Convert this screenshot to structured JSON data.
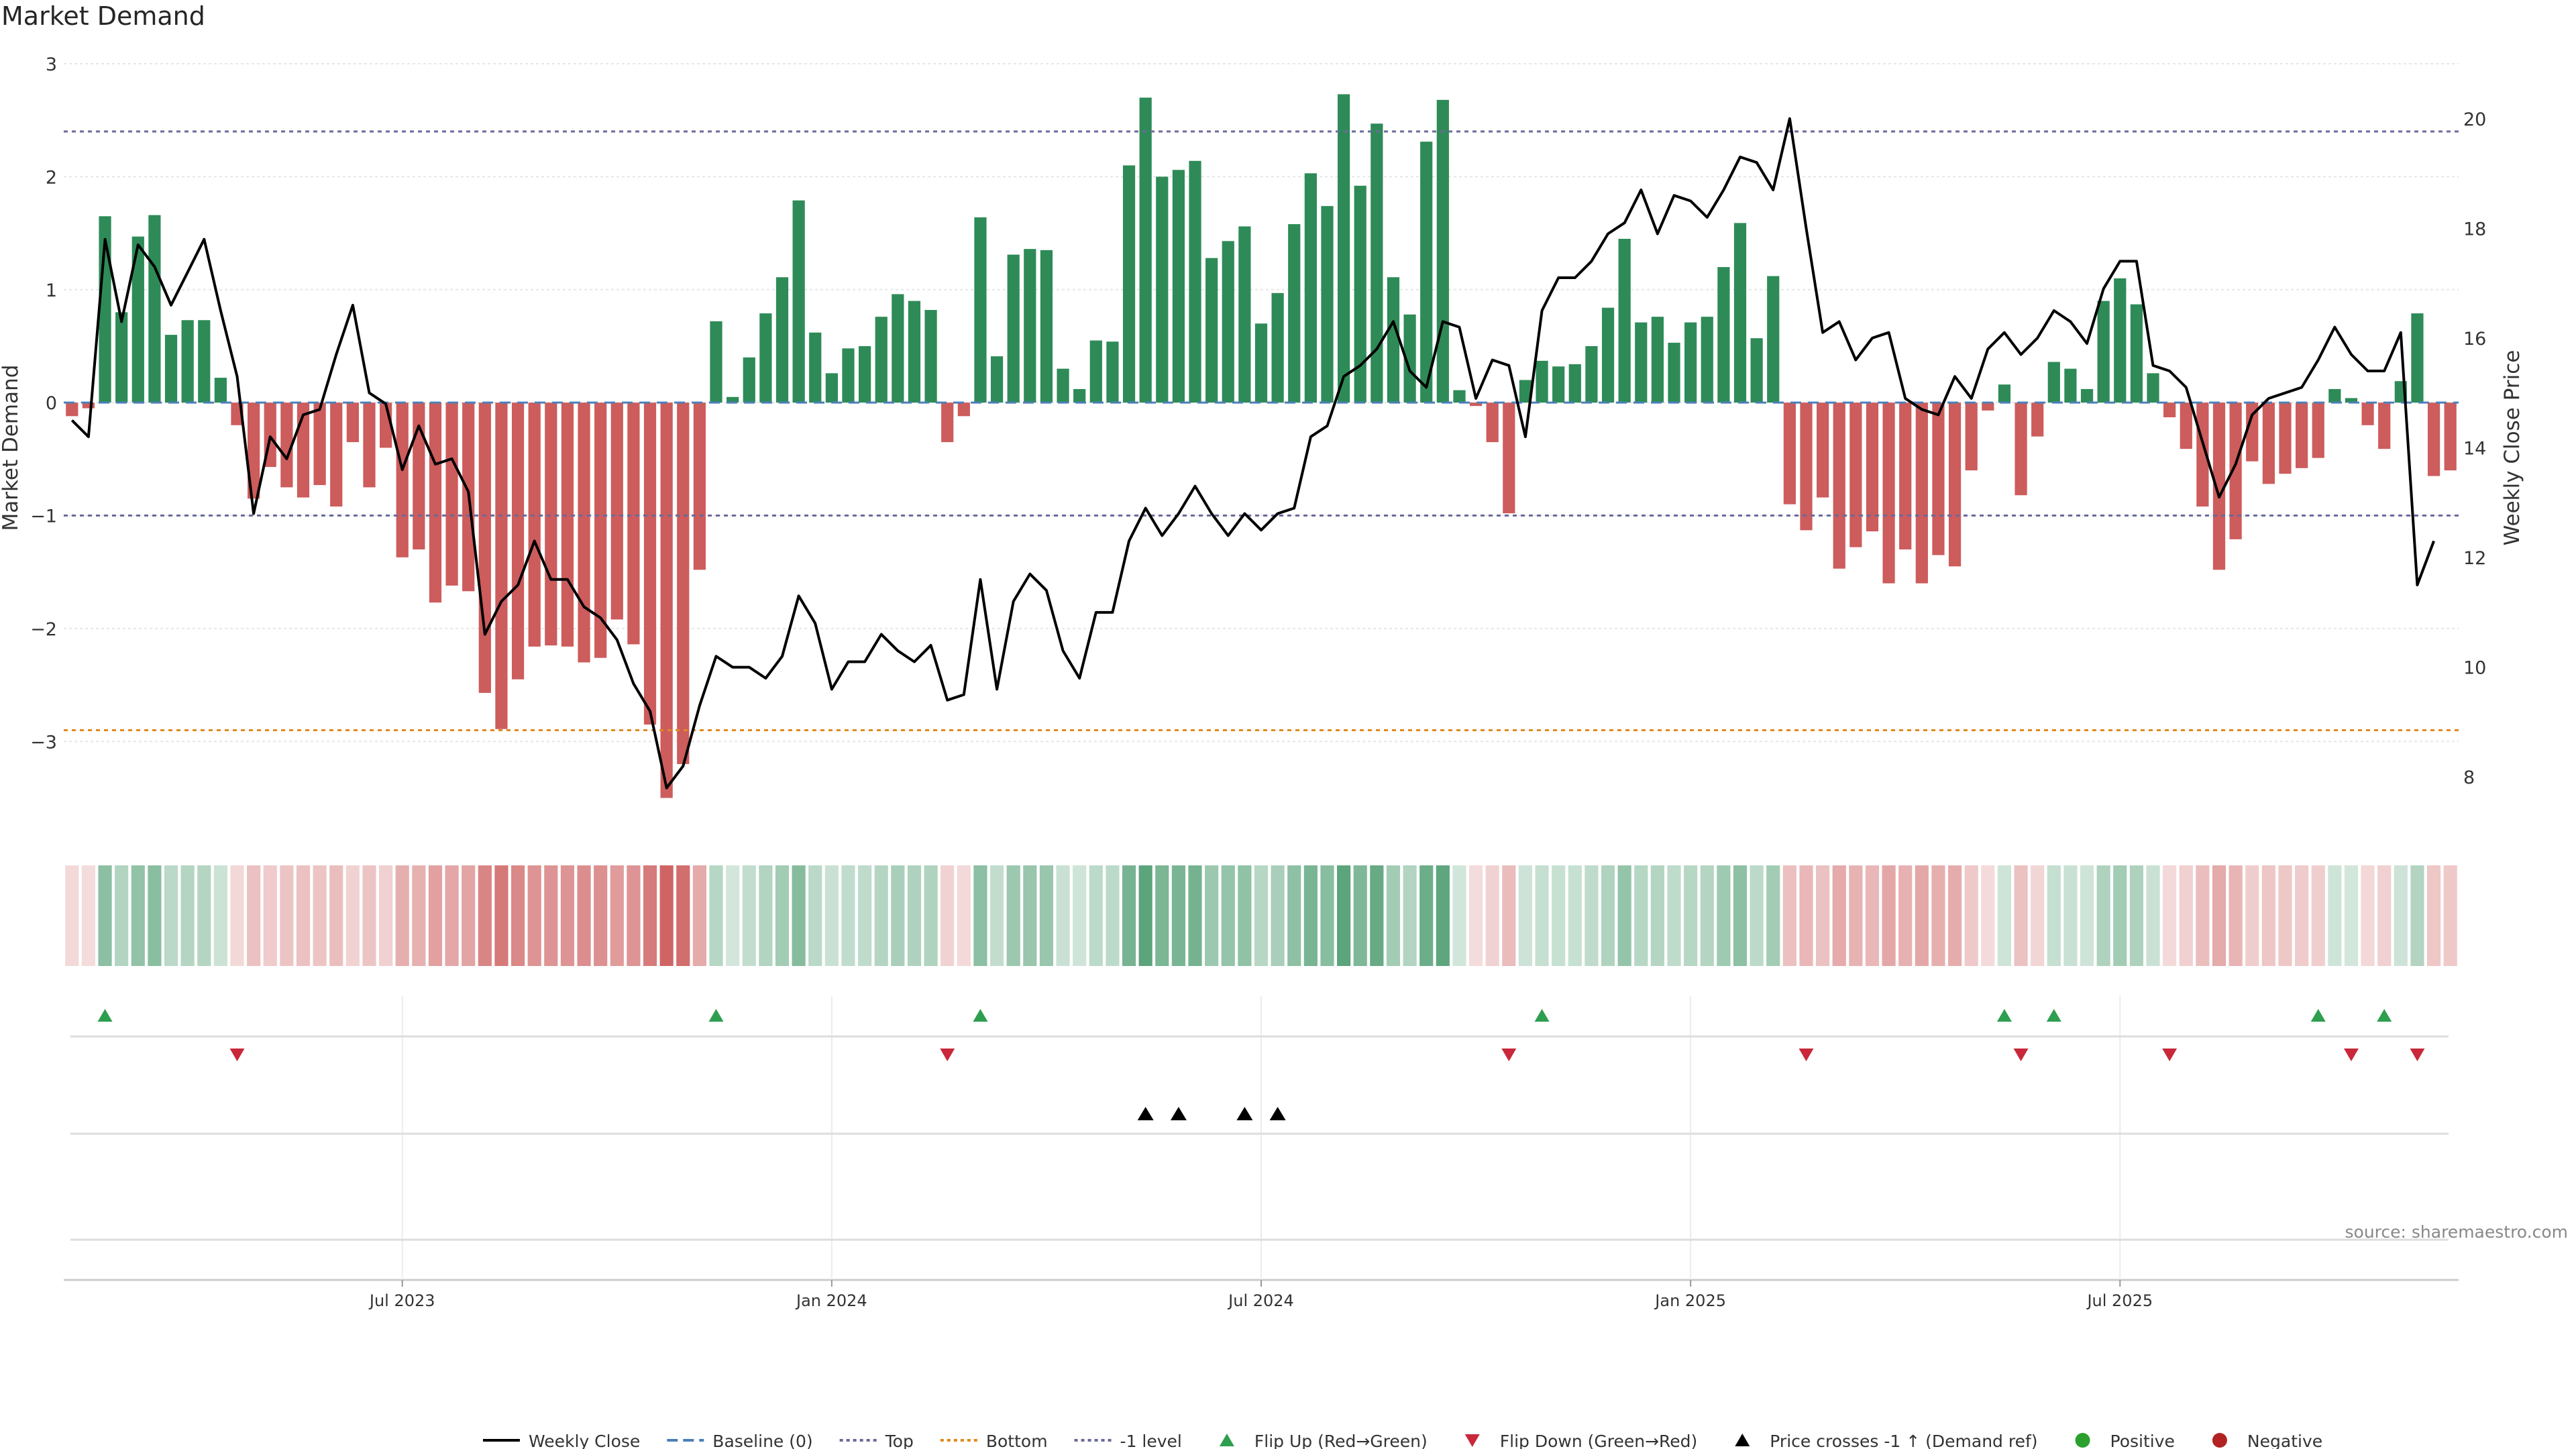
{
  "chart_data": {
    "type": "bar",
    "title": "Market Demand",
    "source_label": "source: sharemaestro.com",
    "ylabel_left": "Market Demand",
    "ylabel_right": "Weekly Close Price",
    "y_left_ticks": [
      {
        "v": 3,
        "t": "3"
      },
      {
        "v": 2,
        "t": "2"
      },
      {
        "v": 1,
        "t": "1"
      },
      {
        "v": 0,
        "t": "0"
      },
      {
        "v": -1,
        "t": "−1"
      },
      {
        "v": -2,
        "t": "−2"
      },
      {
        "v": -3,
        "t": "−3"
      }
    ],
    "y_right_ticks": [
      {
        "v": 20,
        "t": "20"
      },
      {
        "v": 18,
        "t": "18"
      },
      {
        "v": 16,
        "t": "16"
      },
      {
        "v": 14,
        "t": "14"
      },
      {
        "v": 12,
        "t": "12"
      },
      {
        "v": 10,
        "t": "10"
      },
      {
        "v": 8,
        "t": "8"
      }
    ],
    "ylim_left": [
      -3.8,
      3.0
    ],
    "ylim_right": [
      7.0,
      21.0
    ],
    "x_ticks": [
      {
        "i": 20,
        "t": "Jul 2023"
      },
      {
        "i": 46,
        "t": "Jan 2024"
      },
      {
        "i": 72,
        "t": "Jul 2024"
      },
      {
        "i": 98,
        "t": "Jan 2025"
      },
      {
        "i": 124,
        "t": "Jul 2025"
      }
    ],
    "reference_lines": {
      "top": 2.4,
      "bottom": -2.9,
      "minus_one": -1.0,
      "baseline": 0
    },
    "colors": {
      "positive": "#2e8b57",
      "negative": "#cd5c5c",
      "price": "#000000",
      "top_line": "#6a6a9c",
      "bottom_line": "#e08a1e",
      "minus_one_line": "#6a6a9c",
      "baseline_line": "#4c7fb8",
      "flip_up": "#2e9e4f",
      "flip_down": "#c8283a",
      "cross": "#000000",
      "positive_dot": "#2ca02c",
      "negative_dot": "#b22222"
    },
    "demand": [
      -0.12,
      -0.05,
      1.65,
      0.8,
      1.47,
      1.66,
      0.6,
      0.73,
      0.73,
      0.22,
      -0.2,
      -0.85,
      -0.57,
      -0.75,
      -0.84,
      -0.73,
      -0.92,
      -0.35,
      -0.75,
      -0.4,
      -1.37,
      -1.3,
      -1.77,
      -1.62,
      -1.67,
      -2.57,
      -2.89,
      -2.45,
      -2.16,
      -2.15,
      -2.16,
      -2.3,
      -2.26,
      -1.92,
      -2.14,
      -2.85,
      -3.5,
      -3.2,
      -1.48,
      0.72,
      0.05,
      0.4,
      0.79,
      1.11,
      1.79,
      0.62,
      0.26,
      0.48,
      0.5,
      0.76,
      0.96,
      0.9,
      0.82,
      -0.35,
      -0.12,
      1.64,
      0.41,
      1.31,
      1.36,
      1.35,
      0.3,
      0.12,
      0.55,
      0.54,
      2.1,
      2.7,
      2.0,
      2.06,
      2.14,
      1.28,
      1.43,
      1.56,
      0.7,
      0.97,
      1.58,
      2.03,
      1.74,
      2.73,
      1.92,
      2.47,
      1.11,
      0.78,
      2.31,
      2.68,
      0.11,
      -0.03,
      -0.35,
      -0.98,
      0.2,
      0.37,
      0.32,
      0.34,
      0.5,
      0.84,
      1.45,
      0.71,
      0.76,
      0.53,
      0.71,
      0.76,
      1.2,
      1.59,
      0.57,
      1.12,
      -0.9,
      -1.13,
      -0.84,
      -1.47,
      -1.28,
      -1.14,
      -1.6,
      -1.3,
      -1.6,
      -1.35,
      -1.45,
      -0.6,
      -0.07,
      0.16,
      -0.82,
      -0.3,
      0.36,
      0.3,
      0.12,
      0.9,
      1.1,
      0.87,
      0.26,
      -0.13,
      -0.41,
      -0.92,
      -1.48,
      -1.21,
      -0.52,
      -0.72,
      -0.63,
      -0.58,
      -0.49,
      0.12,
      0.04,
      -0.2,
      -0.41,
      0.19,
      0.79,
      -0.65,
      -0.6
    ],
    "price": [
      14.5,
      14.2,
      17.8,
      16.3,
      17.7,
      17.3,
      16.6,
      17.2,
      17.8,
      16.5,
      15.3,
      12.8,
      14.2,
      13.8,
      14.6,
      14.7,
      15.7,
      16.6,
      15.0,
      14.8,
      13.6,
      14.4,
      13.7,
      13.8,
      13.2,
      10.6,
      11.2,
      11.5,
      12.3,
      11.6,
      11.6,
      11.1,
      10.9,
      10.5,
      9.7,
      9.2,
      7.8,
      8.2,
      9.3,
      10.2,
      10.0,
      10.0,
      9.8,
      10.2,
      11.3,
      10.8,
      9.6,
      10.1,
      10.1,
      10.6,
      10.3,
      10.1,
      10.4,
      9.4,
      9.5,
      11.6,
      9.6,
      11.2,
      11.7,
      11.4,
      10.3,
      9.8,
      11.0,
      11.0,
      12.3,
      12.9,
      12.4,
      12.8,
      13.3,
      12.8,
      12.4,
      12.8,
      12.5,
      12.8,
      12.9,
      14.2,
      14.4,
      15.3,
      15.5,
      15.8,
      16.3,
      15.4,
      15.1,
      16.3,
      16.2,
      14.9,
      15.6,
      15.5,
      14.2,
      16.5,
      17.1,
      17.1,
      17.4,
      17.9,
      18.1,
      18.7,
      17.9,
      18.6,
      18.5,
      18.2,
      18.7,
      19.3,
      19.2,
      18.7,
      20.0,
      18.0,
      16.1,
      16.3,
      15.6,
      16.0,
      16.1,
      14.9,
      14.7,
      14.6,
      15.3,
      14.9,
      15.8,
      16.1,
      15.7,
      16.0,
      16.5,
      16.3,
      15.9,
      16.9,
      17.4,
      17.4,
      15.5,
      15.4,
      15.1,
      14.1,
      13.1,
      13.7,
      14.6,
      14.9,
      15.0,
      15.1,
      15.6,
      16.2,
      15.7,
      15.4,
      15.4,
      16.1,
      11.5,
      12.3
    ],
    "flip_up_idx": [
      2,
      39,
      55,
      89,
      117,
      120,
      136,
      140
    ],
    "flip_down_idx": [
      10,
      53,
      87,
      105,
      118,
      127,
      138,
      142
    ],
    "cross_up_idx": [
      65,
      67,
      71,
      73
    ],
    "legend": [
      {
        "key": "weekly-close",
        "label": "Weekly Close",
        "kind": "line",
        "color": "#000000"
      },
      {
        "key": "baseline",
        "label": "Baseline (0)",
        "kind": "dash",
        "color": "#4c7fb8"
      },
      {
        "key": "top",
        "label": "Top",
        "kind": "dot",
        "color": "#6a6a9c"
      },
      {
        "key": "bottom",
        "label": "Bottom",
        "kind": "dot",
        "color": "#e08a1e"
      },
      {
        "key": "minus-one",
        "label": "-1 level",
        "kind": "dot",
        "color": "#6a6a9c"
      },
      {
        "key": "flip-up",
        "label": "Flip Up (Red→Green)",
        "kind": "tri-up",
        "color": "#2e9e4f"
      },
      {
        "key": "flip-down",
        "label": "Flip Down (Green→Red)",
        "kind": "tri-down",
        "color": "#c8283a"
      },
      {
        "key": "price-cross",
        "label": "Price crosses -1 ↑ (Demand ref)",
        "kind": "tri-up",
        "color": "#000000"
      },
      {
        "key": "positive",
        "label": "Positive",
        "kind": "circle",
        "color": "#2ca02c"
      },
      {
        "key": "negative",
        "label": "Negative",
        "kind": "circle",
        "color": "#b22222"
      }
    ]
  }
}
